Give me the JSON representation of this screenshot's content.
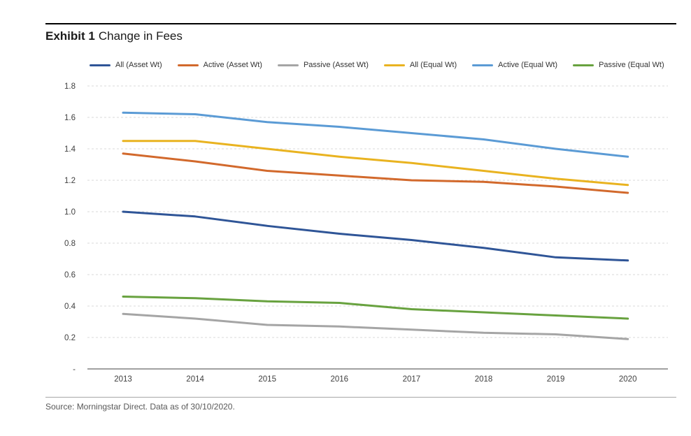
{
  "header": {
    "exhibit_label": "Exhibit 1",
    "title_text": "Change in Fees"
  },
  "source_note": "Source: Morningstar Direct. Data as of 30/10/2020.",
  "colors": {
    "top_rule": "#000000",
    "source_rule": "#a6a6a6",
    "gridline": "#d9d9d9",
    "axis_line": "#808080",
    "tick_text": "#404040"
  },
  "chart_data": {
    "type": "line",
    "title": "Exhibit 1 Change in Fees",
    "x": [
      2013,
      2014,
      2015,
      2016,
      2017,
      2018,
      2019,
      2020
    ],
    "series": [
      {
        "name": "All (Asset Wt)",
        "color": "#2F5597",
        "values": [
          1.0,
          0.97,
          0.91,
          0.86,
          0.82,
          0.77,
          0.71,
          0.69
        ]
      },
      {
        "name": "Active (Asset Wt)",
        "color": "#D2692C",
        "values": [
          1.37,
          1.32,
          1.26,
          1.23,
          1.2,
          1.19,
          1.16,
          1.12
        ]
      },
      {
        "name": "Passive (Asset Wt)",
        "color": "#A5A5A5",
        "values": [
          0.35,
          0.32,
          0.28,
          0.27,
          0.25,
          0.23,
          0.22,
          0.19
        ]
      },
      {
        "name": "All (Equal Wt)",
        "color": "#E9B320",
        "values": [
          1.45,
          1.45,
          1.4,
          1.35,
          1.31,
          1.26,
          1.21,
          1.17
        ]
      },
      {
        "name": "Active (Equal Wt)",
        "color": "#5B9BD5",
        "values": [
          1.63,
          1.62,
          1.57,
          1.54,
          1.5,
          1.46,
          1.4,
          1.35
        ]
      },
      {
        "name": "Passive (Equal Wt)",
        "color": "#68A23F",
        "values": [
          0.46,
          0.45,
          0.43,
          0.42,
          0.38,
          0.36,
          0.34,
          0.32
        ]
      }
    ],
    "xlabel": "",
    "ylabel": "",
    "ylim": [
      0,
      1.8
    ],
    "yticks": [
      {
        "value": 1.8,
        "label": "1.8"
      },
      {
        "value": 1.6,
        "label": "1.6"
      },
      {
        "value": 1.4,
        "label": "1.4"
      },
      {
        "value": 1.2,
        "label": "1.2"
      },
      {
        "value": 1.0,
        "label": "1.0"
      },
      {
        "value": 0.8,
        "label": "0.8"
      },
      {
        "value": 0.6,
        "label": "0.6"
      },
      {
        "value": 0.4,
        "label": "0.4"
      },
      {
        "value": 0.2,
        "label": "0.2"
      },
      {
        "value": 0.0,
        "label": "-"
      }
    ],
    "grid": "horizontal-dashed",
    "legend_position": "top"
  }
}
